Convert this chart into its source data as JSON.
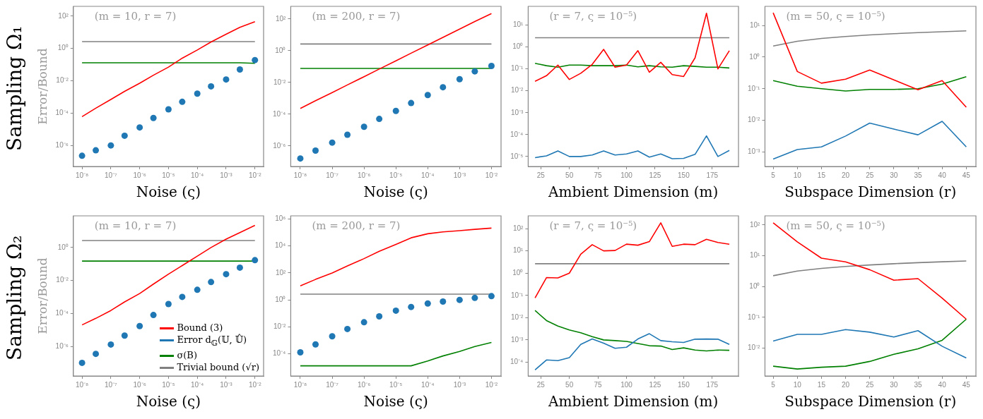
{
  "chart_data": [
    {
      "type": "line",
      "title": "Sampling Ω₁",
      "subtitle": "(m = 10, r = 7)",
      "xlabel": "Noise (ς)",
      "ylabel": "Error/Bound",
      "log": "xy",
      "xlim": [
        5e-09,
        0.02
      ],
      "ylim": [
        5e-08,
        400
      ],
      "xticks": [
        {
          "value": 1e-08,
          "label": "10⁻⁸"
        },
        {
          "value": 1e-07,
          "label": "10⁻⁷"
        },
        {
          "value": 1e-06,
          "label": "10⁻⁶"
        },
        {
          "value": 1e-05,
          "label": "10⁻⁵"
        },
        {
          "value": 0.0001,
          "label": "10⁻⁴"
        },
        {
          "value": 0.001,
          "label": "10⁻³"
        },
        {
          "value": 0.01,
          "label": "10⁻²"
        }
      ],
      "yticks": [
        {
          "value": 1e-06,
          "label": "10⁻⁶"
        },
        {
          "value": 0.0001,
          "label": "10⁻⁴"
        },
        {
          "value": 0.01,
          "label": "10⁻²"
        },
        {
          "value": 1,
          "label": "10⁰"
        },
        {
          "value": 100,
          "label": "10²"
        }
      ],
      "x": [
        1e-08,
        3e-08,
        1e-07,
        3e-07,
        1e-06,
        3e-06,
        1e-05,
        3e-05,
        0.0001,
        0.0003,
        0.001,
        0.003,
        0.01
      ],
      "series": [
        {
          "color": "#ff0000",
          "values": [
            6e-05,
            0.0002,
            0.0007,
            0.0022,
            0.007,
            0.022,
            0.07,
            0.25,
            0.8,
            2.5,
            7.6,
            20,
            45
          ]
        },
        {
          "type": "scatter",
          "color": "#1f77b4",
          "values": [
            2.3e-07,
            5e-07,
            1e-06,
            4e-06,
            1.3e-05,
            5e-05,
            0.00017,
            0.0005,
            0.0016,
            0.0045,
            0.012,
            0.05,
            0.19
          ]
        },
        {
          "color": "#008000",
          "values": [
            0.13,
            0.13,
            0.13,
            0.13,
            0.13,
            0.13,
            0.13,
            0.13,
            0.13,
            0.13,
            0.13,
            0.13,
            0.12
          ]
        },
        {
          "color": "#808080",
          "values": [
            2.65,
            2.65,
            2.65,
            2.65,
            2.65,
            2.65,
            2.65,
            2.65,
            2.65,
            2.65,
            2.65,
            2.65,
            2.65
          ]
        }
      ]
    },
    {
      "type": "line",
      "subtitle": "(m = 200, r = 7)",
      "xlabel": "Noise (ς)",
      "log": "xy",
      "xlim": [
        5e-09,
        0.02
      ],
      "ylim": [
        5e-08,
        630
      ],
      "xticks": [
        {
          "value": 1e-08,
          "label": "10⁻⁸"
        },
        {
          "value": 1e-07,
          "label": "10⁻⁷"
        },
        {
          "value": 1e-06,
          "label": "10⁻⁶"
        },
        {
          "value": 1e-05,
          "label": "10⁻⁵"
        },
        {
          "value": 0.0001,
          "label": "10⁻⁴"
        },
        {
          "value": 0.001,
          "label": "10⁻³"
        },
        {
          "value": 0.01,
          "label": "10⁻²"
        }
      ],
      "yticks": [
        {
          "value": 1e-06,
          "label": "10⁻⁶"
        },
        {
          "value": 0.0001,
          "label": "10⁻⁴"
        },
        {
          "value": 0.01,
          "label": "10⁻²"
        },
        {
          "value": 1,
          "label": "10⁰"
        },
        {
          "value": 100,
          "label": "10²"
        }
      ],
      "x": [
        1e-08,
        3e-08,
        1e-07,
        3e-07,
        1e-06,
        3e-06,
        1e-05,
        3e-05,
        0.0001,
        0.0003,
        0.001,
        0.003,
        0.01
      ],
      "series": [
        {
          "color": "#ff0000",
          "values": [
            0.00023,
            0.0007,
            0.0023,
            0.007,
            0.023,
            0.07,
            0.23,
            0.7,
            2.3,
            7,
            23,
            70,
            220
          ]
        },
        {
          "type": "scatter",
          "color": "#1f77b4",
          "values": [
            1.6e-07,
            5e-07,
            1.6e-06,
            5e-06,
            1.6e-05,
            5e-05,
            0.00016,
            0.0005,
            0.0016,
            0.005,
            0.016,
            0.05,
            0.11
          ]
        },
        {
          "color": "#008000",
          "values": [
            0.077,
            0.077,
            0.077,
            0.077,
            0.077,
            0.077,
            0.077,
            0.077,
            0.077,
            0.077,
            0.077,
            0.077,
            0.077
          ]
        },
        {
          "color": "#808080",
          "values": [
            2.65,
            2.65,
            2.65,
            2.65,
            2.65,
            2.65,
            2.65,
            2.65,
            2.65,
            2.65,
            2.65,
            2.65,
            2.65
          ]
        }
      ]
    },
    {
      "type": "line",
      "subtitle": "(r = 7, ς = 10⁻⁵)",
      "xlabel": "Ambient Dimension (m)",
      "log": "y",
      "xlim": [
        14,
        198
      ],
      "ylim": [
        3.5e-06,
        72
      ],
      "xticks": [
        25,
        50,
        75,
        100,
        125,
        150,
        175
      ],
      "yticks": [
        {
          "value": 1e-05,
          "label": "10⁻⁵"
        },
        {
          "value": 0.0001,
          "label": "10⁻⁴"
        },
        {
          "value": 0.001,
          "label": "10⁻³"
        },
        {
          "value": 0.01,
          "label": "10⁻²"
        },
        {
          "value": 0.1,
          "label": "10⁻¹"
        },
        {
          "value": 1,
          "label": "10⁰"
        },
        {
          "value": 10,
          "label": "10¹"
        }
      ],
      "x": [
        20,
        30,
        40,
        50,
        60,
        70,
        80,
        90,
        100,
        110,
        120,
        130,
        140,
        150,
        160,
        170,
        180,
        190
      ],
      "series": [
        {
          "color": "#ff0000",
          "values": [
            0.027,
            0.049,
            0.15,
            0.033,
            0.063,
            0.16,
            0.78,
            0.12,
            0.15,
            0.68,
            0.071,
            0.2,
            0.055,
            0.045,
            0.32,
            35,
            0.1,
            0.68
          ]
        },
        {
          "color": "#1f77b4",
          "values": [
            8.9e-06,
            1.07e-05,
            1.8e-05,
            1e-05,
            1e-05,
            1.17e-05,
            1.8e-05,
            1.17e-05,
            1.3e-05,
            1.8e-05,
            9.4e-06,
            1.3e-05,
            7.9e-06,
            8.2e-06,
            1.25e-05,
            8.7e-05,
            1e-05,
            1.9e-05
          ]
        },
        {
          "color": "#008000",
          "values": [
            0.18,
            0.14,
            0.12,
            0.15,
            0.15,
            0.14,
            0.14,
            0.14,
            0.15,
            0.125,
            0.14,
            0.125,
            0.12,
            0.14,
            0.13,
            0.12,
            0.12,
            0.11
          ]
        },
        {
          "color": "#808080",
          "values": [
            2.65,
            2.65,
            2.65,
            2.65,
            2.65,
            2.65,
            2.65,
            2.65,
            2.65,
            2.65,
            2.65,
            2.65,
            2.65,
            2.65,
            2.65,
            2.65,
            2.65,
            2.65
          ]
        }
      ]
    },
    {
      "type": "line",
      "subtitle": "(m = 50, ς = 10⁻⁵)",
      "xlabel": "Subspace Dimension (r)",
      "log": "y",
      "xlim": [
        3.3,
        47
      ],
      "ylim": [
        0.00035,
        40
      ],
      "xticks": [
        5,
        10,
        15,
        20,
        25,
        30,
        35,
        40,
        45
      ],
      "yticks": [
        {
          "value": 0.001,
          "label": "10⁻³"
        },
        {
          "value": 0.01,
          "label": "10⁻²"
        },
        {
          "value": 0.1,
          "label": "10⁻¹"
        },
        {
          "value": 1,
          "label": "10⁰"
        },
        {
          "value": 10,
          "label": "10¹"
        }
      ],
      "x": [
        5,
        10,
        15,
        20,
        25,
        30,
        35,
        40,
        45
      ],
      "series": [
        {
          "color": "#ff0000",
          "values": [
            25,
            0.35,
            0.15,
            0.2,
            0.39,
            0.19,
            0.093,
            0.18,
            0.026
          ]
        },
        {
          "color": "#1f77b4",
          "values": [
            0.0006,
            0.0012,
            0.00145,
            0.0032,
            0.0082,
            0.0053,
            0.0035,
            0.0093,
            0.00145
          ]
        },
        {
          "color": "#008000",
          "values": [
            0.18,
            0.12,
            0.1,
            0.085,
            0.095,
            0.095,
            0.1,
            0.14,
            0.24
          ]
        },
        {
          "color": "#808080",
          "values": [
            2.24,
            3.16,
            3.87,
            4.47,
            5,
            5.48,
            5.92,
            6.32,
            6.71
          ]
        }
      ]
    },
    {
      "type": "line",
      "title": "Sampling Ω₂",
      "subtitle": "(m = 10, r = 7)",
      "xlabel": "Noise (ς)",
      "ylabel": "Error/Bound",
      "log": "xy",
      "legend": "bottom right",
      "xlim": [
        5e-09,
        0.02
      ],
      "ylim": [
        1.6e-08,
        83
      ],
      "xticks": [
        {
          "value": 1e-08,
          "label": "10⁻⁸"
        },
        {
          "value": 1e-07,
          "label": "10⁻⁷"
        },
        {
          "value": 1e-06,
          "label": "10⁻⁶"
        },
        {
          "value": 1e-05,
          "label": "10⁻⁵"
        },
        {
          "value": 0.0001,
          "label": "10⁻⁴"
        },
        {
          "value": 0.001,
          "label": "10⁻³"
        },
        {
          "value": 0.01,
          "label": "10⁻²"
        }
      ],
      "yticks": [
        {
          "value": 1e-06,
          "label": "10⁻⁶"
        },
        {
          "value": 0.0001,
          "label": "10⁻⁴"
        },
        {
          "value": 0.01,
          "label": "10⁻²"
        },
        {
          "value": 1,
          "label": "10⁰"
        }
      ],
      "x": [
        1e-08,
        3e-08,
        1e-07,
        3e-07,
        1e-06,
        3e-06,
        1e-05,
        3e-05,
        0.0001,
        0.0003,
        0.001,
        0.003,
        0.01
      ],
      "series": [
        {
          "name": "Bound (3)",
          "color": "#ff0000",
          "values": [
            2e-05,
            5e-05,
            0.00015,
            0.0005,
            0.0016,
            0.006,
            0.024,
            0.08,
            0.3,
            1.0,
            3.2,
            8,
            22
          ]
        },
        {
          "name": "Error d$_{𝔾}$(𝕌, 𝕌̂)",
          "type": "scatter",
          "color": "#1f77b4",
          "values": [
            1e-07,
            3.5e-07,
            1.3e-06,
            4.5e-06,
            1.7e-05,
            8e-05,
            0.00037,
            0.001,
            0.0027,
            0.008,
            0.024,
            0.06,
            0.17
          ]
        },
        {
          "name": "σ(B)",
          "color": "#008000",
          "values": [
            0.15,
            0.15,
            0.15,
            0.15,
            0.15,
            0.15,
            0.15,
            0.15,
            0.15,
            0.15,
            0.15,
            0.15,
            0.15
          ]
        },
        {
          "name": "Trivial bound (√r)",
          "color": "#808080",
          "values": [
            2.65,
            2.65,
            2.65,
            2.65,
            2.65,
            2.65,
            2.65,
            2.65,
            2.65,
            2.65,
            2.65,
            2.65,
            2.65
          ]
        }
      ]
    },
    {
      "type": "line",
      "subtitle": "(m = 200, r = 7)",
      "xlabel": "Noise (ς)",
      "log": "xy",
      "xlim": [
        5e-09,
        0.02
      ],
      "ylim": [
        2.3e-06,
        1700000.0
      ],
      "xticks": [
        {
          "value": 1e-08,
          "label": "10⁻⁸"
        },
        {
          "value": 1e-07,
          "label": "10⁻⁷"
        },
        {
          "value": 1e-06,
          "label": "10⁻⁶"
        },
        {
          "value": 1e-05,
          "label": "10⁻⁵"
        },
        {
          "value": 0.0001,
          "label": "10⁻⁴"
        },
        {
          "value": 0.001,
          "label": "10⁻³"
        },
        {
          "value": 0.01,
          "label": "10⁻²"
        }
      ],
      "yticks": [
        {
          "value": 0.0001,
          "label": "10⁻⁴"
        },
        {
          "value": 0.01,
          "label": "10⁻²"
        },
        {
          "value": 1,
          "label": "10⁰"
        },
        {
          "value": 100,
          "label": "10²"
        },
        {
          "value": 10000.0,
          "label": "10⁴"
        },
        {
          "value": 1000000.0,
          "label": "10⁶"
        }
      ],
      "x": [
        1e-08,
        3e-08,
        1e-07,
        3e-07,
        1e-06,
        3e-06,
        1e-05,
        3e-05,
        0.0001,
        0.0003,
        0.001,
        0.003,
        0.01
      ],
      "series": [
        {
          "color": "#ff0000",
          "values": [
            11,
            33,
            100,
            330,
            1150,
            4000,
            13000,
            40000,
            80000,
            110000,
            135000,
            170000,
            210000
          ]
        },
        {
          "type": "scatter",
          "color": "#1f77b4",
          "values": [
            0.00013,
            0.0005,
            0.002,
            0.007,
            0.022,
            0.06,
            0.16,
            0.3,
            0.54,
            0.75,
            1.0,
            1.4,
            1.9
          ]
        },
        {
          "color": "#008000",
          "values": [
            1.3e-05,
            1.3e-05,
            1.3e-05,
            1.3e-05,
            1.3e-05,
            1.3e-05,
            1.3e-05,
            1.3e-05,
            3e-05,
            7e-05,
            0.00015,
            0.00035,
            0.0007
          ]
        },
        {
          "color": "#808080",
          "values": [
            2.65,
            2.65,
            2.65,
            2.65,
            2.65,
            2.65,
            2.65,
            2.65,
            2.65,
            2.65,
            2.65,
            2.65,
            2.65
          ]
        }
      ]
    },
    {
      "type": "line",
      "subtitle": "(r = 7, ς = 10⁻⁵)",
      "xlabel": "Ambient Dimension (m)",
      "log": "y",
      "xlim": [
        14,
        198
      ],
      "ylim": [
        2.4e-05,
        375
      ],
      "xticks": [
        25,
        50,
        75,
        100,
        125,
        150,
        175
      ],
      "yticks": [
        {
          "value": 0.0001,
          "label": "10⁻⁴"
        },
        {
          "value": 0.001,
          "label": "10⁻³"
        },
        {
          "value": 0.01,
          "label": "10⁻²"
        },
        {
          "value": 0.1,
          "label": "10⁻¹"
        },
        {
          "value": 1,
          "label": "10⁰"
        },
        {
          "value": 10,
          "label": "10¹"
        },
        {
          "value": 100,
          "label": "10²"
        }
      ],
      "x": [
        20,
        30,
        40,
        50,
        60,
        70,
        80,
        90,
        100,
        110,
        120,
        130,
        140,
        150,
        160,
        170,
        180,
        190
      ],
      "series": [
        {
          "color": "#ff0000",
          "values": [
            0.077,
            0.63,
            0.61,
            1.0,
            7.1,
            19,
            10,
            10.4,
            20,
            18,
            26,
            182,
            16,
            20,
            19,
            33,
            24,
            20
          ]
        },
        {
          "color": "#1f77b4",
          "values": [
            4.5e-05,
            0.000126,
            0.000117,
            0.00016,
            0.00063,
            0.0011,
            0.00071,
            0.00042,
            0.00047,
            0.0011,
            0.0019,
            0.00093,
            0.00083,
            0.00077,
            0.00108,
            0.0011,
            0.00108,
            0.00063
          ]
        },
        {
          "color": "#008000",
          "values": [
            0.021,
            0.0074,
            0.0042,
            0.0028,
            0.0021,
            0.0014,
            0.001,
            0.00093,
            0.00086,
            0.00069,
            0.00055,
            0.00053,
            0.00037,
            0.00044,
            0.00035,
            0.00032,
            0.00035,
            0.00034
          ]
        },
        {
          "color": "#808080",
          "values": [
            2.65,
            2.65,
            2.65,
            2.65,
            2.65,
            2.65,
            2.65,
            2.65,
            2.65,
            2.65,
            2.65,
            2.65,
            2.65,
            2.65,
            2.65,
            2.65,
            2.65,
            2.65
          ]
        }
      ]
    },
    {
      "type": "line",
      "subtitle": "(m = 50, ς = 10⁻⁵)",
      "xlabel": "Subspace Dimension (r)",
      "log": "y",
      "xlim": [
        3.3,
        47
      ],
      "ylim": [
        0.00125,
        196
      ],
      "xticks": [
        5,
        10,
        15,
        20,
        25,
        30,
        35,
        40,
        45
      ],
      "yticks": [
        {
          "value": 0.01,
          "label": "10⁻²"
        },
        {
          "value": 0.1,
          "label": "10⁻¹"
        },
        {
          "value": 1,
          "label": "10⁰"
        },
        {
          "value": 10,
          "label": "10¹"
        },
        {
          "value": 100,
          "label": "10²"
        }
      ],
      "x": [
        5,
        10,
        15,
        20,
        25,
        30,
        35,
        40,
        45
      ],
      "series": [
        {
          "color": "#ff0000",
          "values": [
            117,
            28,
            8.3,
            6.3,
            3.5,
            1.6,
            1.8,
            0.42,
            0.087
          ]
        },
        {
          "color": "#1f77b4",
          "values": [
            0.017,
            0.028,
            0.028,
            0.04,
            0.033,
            0.023,
            0.037,
            0.0115,
            0.0048
          ]
        },
        {
          "color": "#008000",
          "values": [
            0.0026,
            0.0021,
            0.0024,
            0.0026,
            0.0037,
            0.0063,
            0.0095,
            0.018,
            0.087
          ]
        },
        {
          "color": "#808080",
          "values": [
            2.24,
            3.16,
            3.87,
            4.47,
            5,
            5.48,
            5.92,
            6.32,
            6.71
          ]
        }
      ]
    }
  ]
}
